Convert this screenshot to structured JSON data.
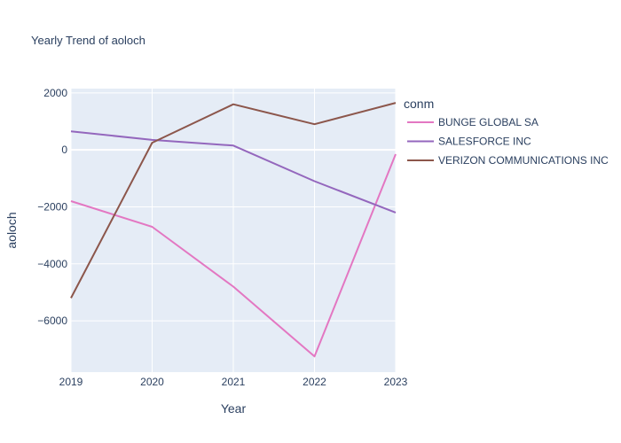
{
  "chart_data": {
    "type": "line",
    "title": "Yearly Trend of aoloch",
    "xlabel": "Year",
    "ylabel": "aoloch",
    "x": [
      2019,
      2020,
      2021,
      2022,
      2023
    ],
    "xlim": [
      2019,
      2023
    ],
    "ylim": [
      -7800,
      2150
    ],
    "y_ticks": [
      2000,
      0,
      -2000,
      -4000,
      -6000
    ],
    "y_tick_labels": [
      "2000",
      "0",
      "−2000",
      "−4000",
      "−6000"
    ],
    "grid": true,
    "legend_title": "conm",
    "legend_position": "right",
    "series": [
      {
        "name": "BUNGE GLOBAL SA",
        "color": "#e377c2",
        "values": [
          -1800,
          -2700,
          -4800,
          -7250,
          -150
        ]
      },
      {
        "name": "SALESFORCE INC",
        "color": "#9467bd",
        "values": [
          650,
          350,
          150,
          -1100,
          -2200
        ]
      },
      {
        "name": "VERIZON COMMUNICATIONS INC",
        "color": "#8c564b",
        "values": [
          -5200,
          250,
          1600,
          900,
          1650
        ]
      }
    ]
  }
}
